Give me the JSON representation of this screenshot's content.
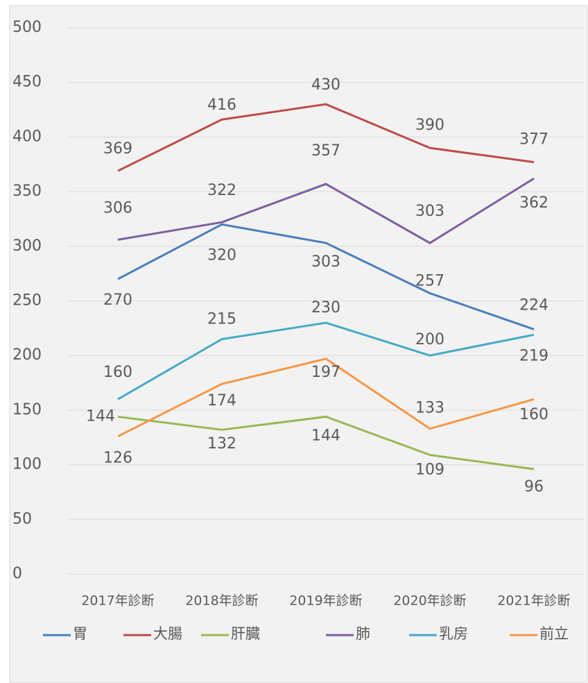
{
  "chart_data": {
    "type": "line",
    "categories": [
      "2017年診断",
      "2018年診断",
      "2019年診断",
      "2020年診断",
      "2021年診断"
    ],
    "series": [
      {
        "name": "胃",
        "color": "#4a7ebb",
        "values": [
          270,
          320,
          303,
          257,
          224
        ]
      },
      {
        "name": "大腸",
        "color": "#be4b48",
        "values": [
          369,
          416,
          430,
          390,
          377
        ]
      },
      {
        "name": "肝臓",
        "color": "#98b954",
        "values": [
          144,
          132,
          144,
          109,
          96
        ]
      },
      {
        "name": "肺",
        "color": "#7d5fa0",
        "values": [
          306,
          322,
          357,
          303,
          362
        ]
      },
      {
        "name": "乳房",
        "color": "#46aac5",
        "values": [
          160,
          215,
          230,
          200,
          219
        ]
      },
      {
        "name": "前立",
        "color": "#f79646",
        "values": [
          126,
          174,
          197,
          133,
          160
        ]
      }
    ],
    "ylim": [
      0,
      500
    ],
    "yticks": [
      0,
      50,
      100,
      150,
      200,
      250,
      300,
      350,
      400,
      450,
      500
    ],
    "grid": true,
    "legend": "bottom"
  }
}
